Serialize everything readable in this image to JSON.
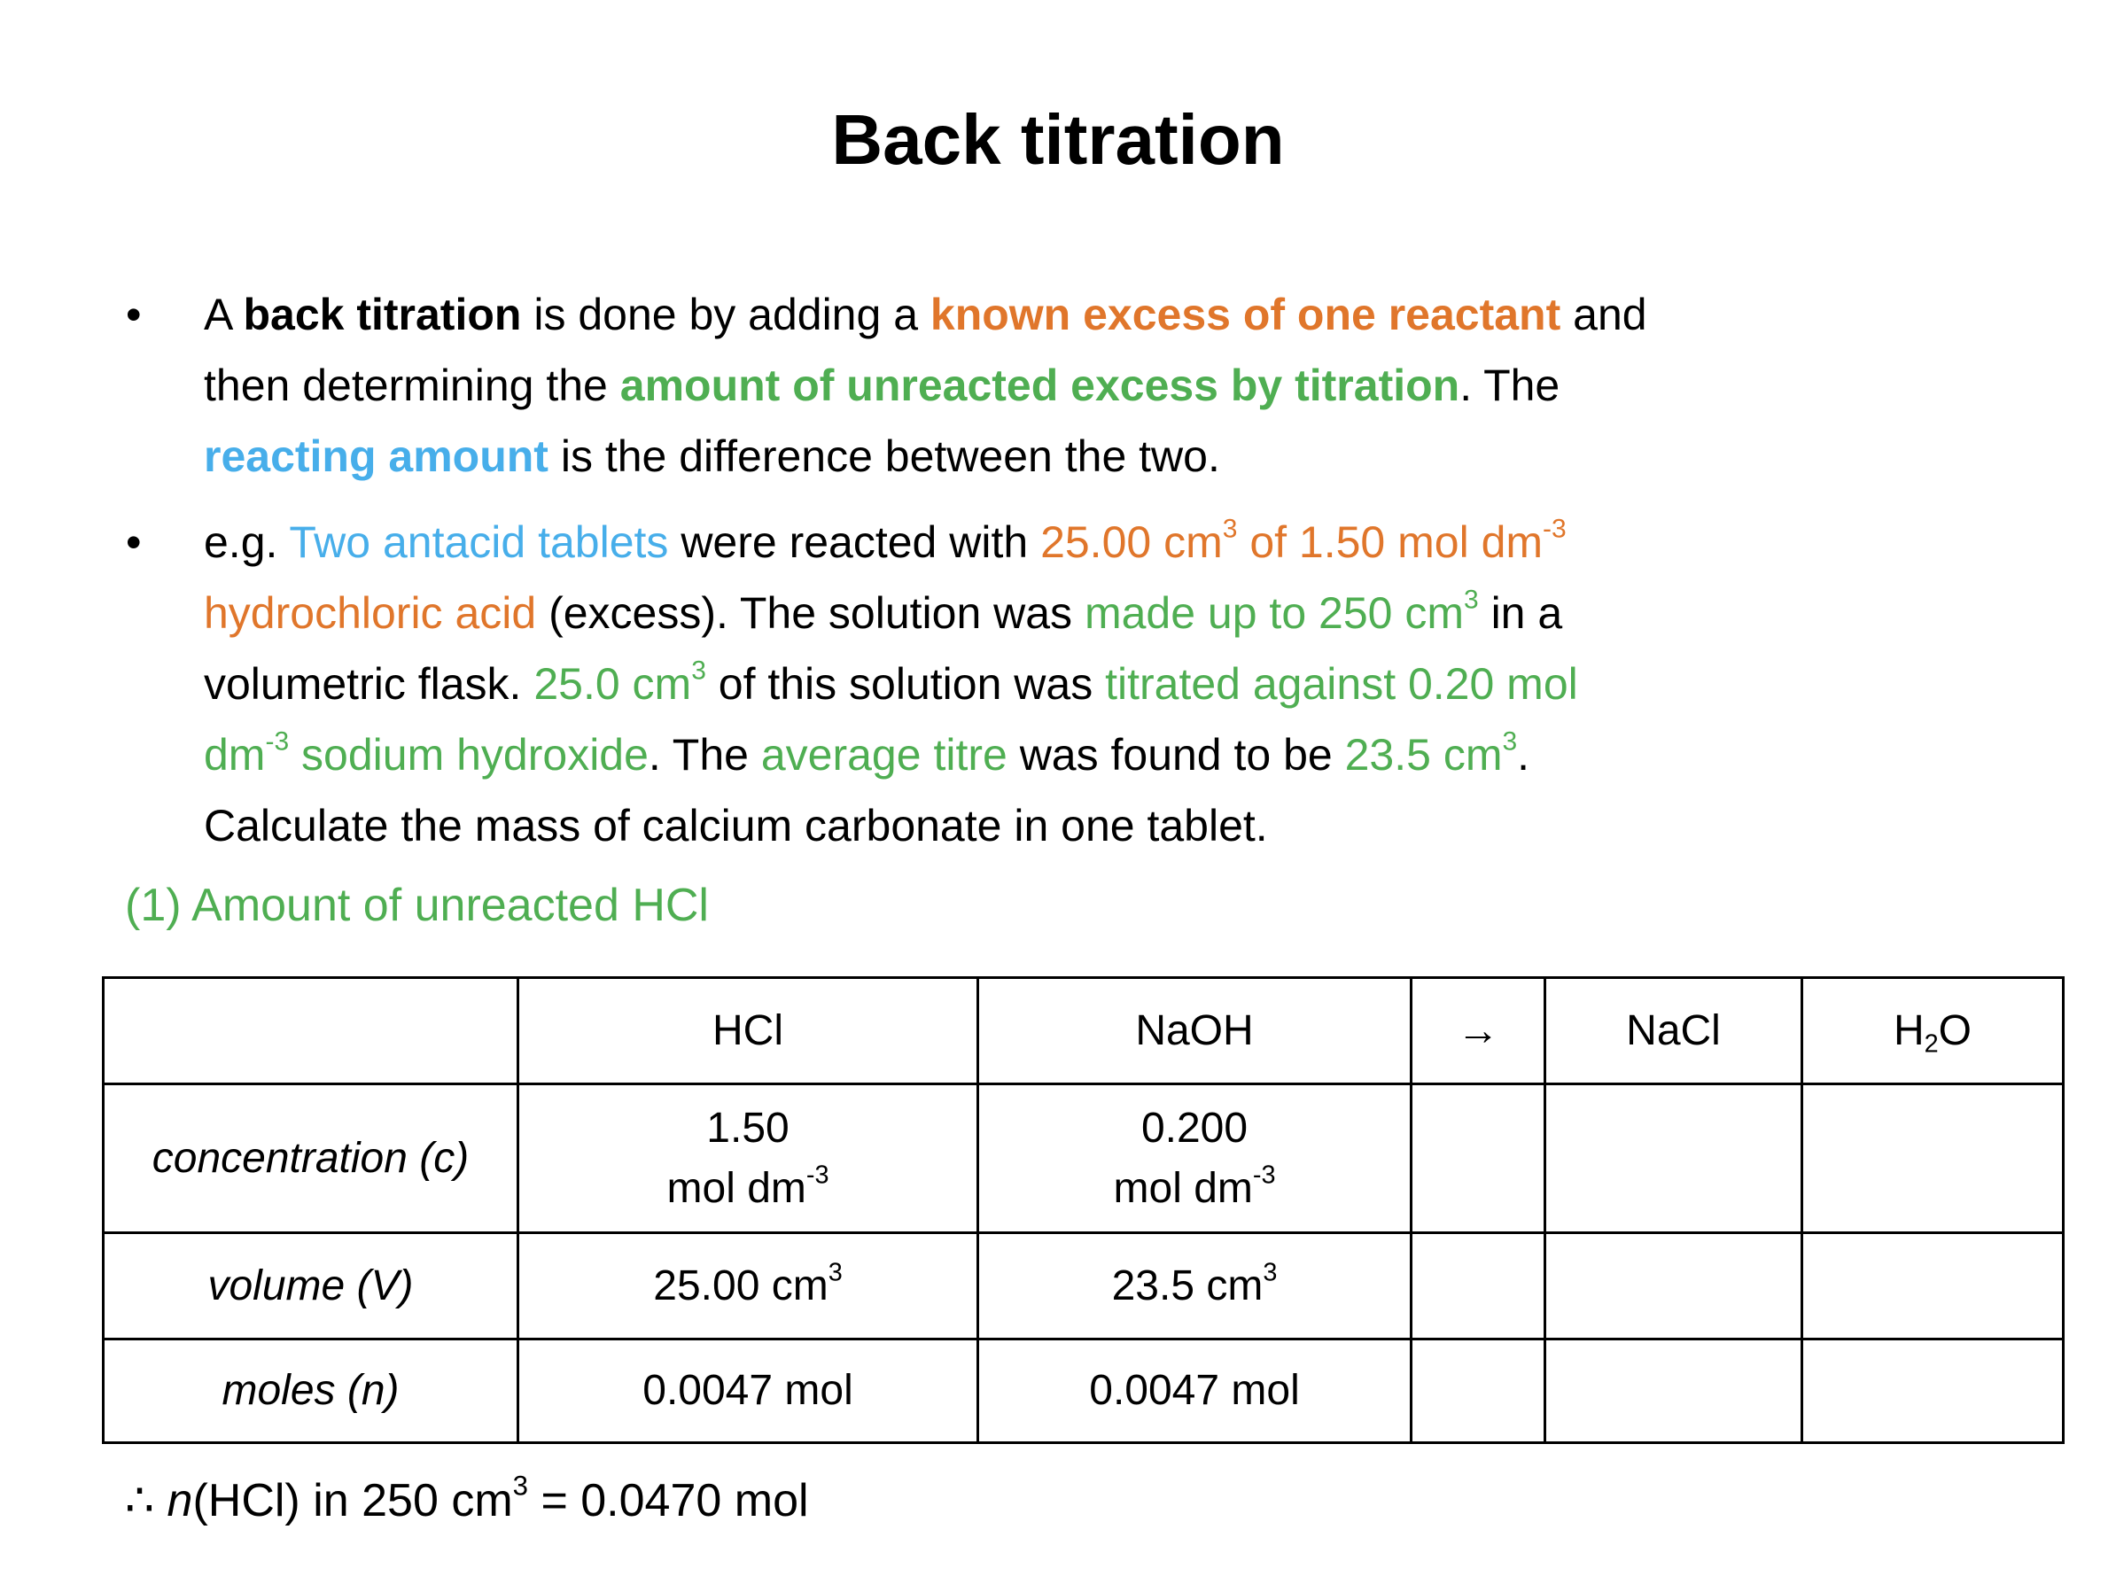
{
  "title": "Back titration",
  "bullet_symbol": "•",
  "p1": {
    "l1": [
      "A ",
      "back titration",
      " is done by adding a ",
      "known excess of one reactant",
      " and"
    ],
    "l2": [
      "then determining the ",
      "amount of unreacted excess by titration",
      ". The"
    ],
    "l3": [
      "reacting amount",
      " is the difference between the two."
    ]
  },
  "p2": {
    "l1": [
      "e.g. ",
      "Two antacid tablets",
      " were reacted with ",
      "25.00 cm",
      "3",
      " of 1.50 mol dm",
      "-3"
    ],
    "l2": [
      "hydrochloric acid",
      " (excess). The solution was ",
      "made up to 250 cm",
      "3",
      " in a"
    ],
    "l3": [
      "volumetric flask. ",
      "25.0 cm",
      "3",
      " of this solution was ",
      "titrated against 0.20 mol"
    ],
    "l4": [
      "dm",
      "-3",
      " sodium hydroxide",
      ". The ",
      "average titre",
      " was found to be ",
      "23.5 cm",
      "3",
      "."
    ],
    "l5": [
      "Calculate the mass of calcium carbonate in one tablet."
    ]
  },
  "heading": "(1) Amount of unreacted HCl",
  "table": {
    "headers": [
      "",
      "HCl",
      "NaOH",
      "→",
      "NaCl",
      "H",
      "2",
      "O"
    ],
    "rows": [
      {
        "label": "concentration (c)",
        "hcl": [
          "1.50",
          "mol dm",
          "-3"
        ],
        "naoh": [
          "0.200",
          "mol dm",
          "-3"
        ]
      },
      {
        "label": "volume (V)",
        "hcl": [
          "25.00 cm",
          "3"
        ],
        "naoh": [
          "23.5 cm",
          "3"
        ]
      },
      {
        "label": "moles (n)",
        "hcl": [
          "0.0047 mol"
        ],
        "naoh": [
          "0.0047 mol"
        ]
      }
    ]
  },
  "footer": [
    "∴ ",
    "n",
    "(HCl) in 250 cm",
    "3",
    " = 0.0470 mol"
  ],
  "colors": {
    "orange": "#E0762B",
    "green": "#4FAE52",
    "blue": "#47AEEA"
  }
}
